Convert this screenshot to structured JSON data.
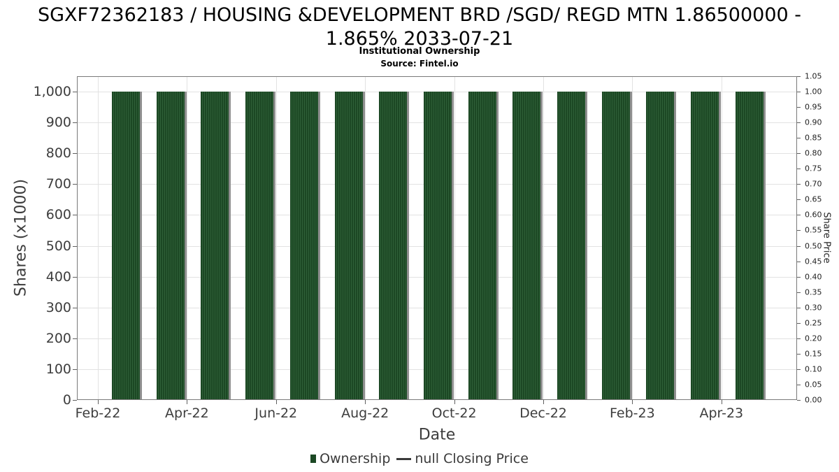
{
  "chart_data": {
    "type": "bar",
    "title_line1": "SGXF72362183 / HOUSING &DEVELOPMENT BRD /SGD/ REGD MTN 1.86500000 -",
    "title_line2": "1.865% 2033-07-21",
    "subtitle": "Institutional Ownership",
    "source": "Source: Fintel.io",
    "categories": [
      "Feb-22",
      "Mar-22",
      "Apr-22",
      "May-22",
      "Jun-22",
      "Jul-22",
      "Aug-22",
      "Sep-22",
      "Oct-22",
      "Nov-22",
      "Dec-22",
      "Jan-23",
      "Feb-23",
      "Mar-23",
      "Apr-23"
    ],
    "series": [
      {
        "name": "Ownership",
        "type": "bar",
        "values": [
          1000,
          1000,
          1000,
          1000,
          1000,
          1000,
          1000,
          1000,
          1000,
          1000,
          1000,
          1000,
          1000,
          1000,
          1000
        ]
      },
      {
        "name": "null Closing Price",
        "type": "line",
        "values": []
      }
    ],
    "x_axis": {
      "label": "Date",
      "tick_labels": [
        "Feb-22",
        "Apr-22",
        "Jun-22",
        "Aug-22",
        "Oct-22",
        "Dec-22",
        "Feb-23",
        "Apr-23"
      ]
    },
    "left_axis": {
      "label": "Shares (x1000)",
      "range": [
        0,
        1050
      ],
      "ticks": [
        {
          "value": 0,
          "label": "0"
        },
        {
          "value": 100,
          "label": "100"
        },
        {
          "value": 200,
          "label": "200"
        },
        {
          "value": 300,
          "label": "300"
        },
        {
          "value": 400,
          "label": "400"
        },
        {
          "value": 500,
          "label": "500"
        },
        {
          "value": 600,
          "label": "600"
        },
        {
          "value": 700,
          "label": "700"
        },
        {
          "value": 800,
          "label": "800"
        },
        {
          "value": 900,
          "label": "900"
        },
        {
          "value": 1000,
          "label": "1,000"
        }
      ]
    },
    "right_axis": {
      "label": "Share Price",
      "range": [
        0,
        1.05
      ],
      "ticks": [
        {
          "value": 0.0,
          "label": "0.00"
        },
        {
          "value": 0.05,
          "label": "0.05"
        },
        {
          "value": 0.1,
          "label": "0.10"
        },
        {
          "value": 0.15,
          "label": "0.15"
        },
        {
          "value": 0.2,
          "label": "0.20"
        },
        {
          "value": 0.25,
          "label": "0.25"
        },
        {
          "value": 0.3,
          "label": "0.30"
        },
        {
          "value": 0.35,
          "label": "0.35"
        },
        {
          "value": 0.4,
          "label": "0.40"
        },
        {
          "value": 0.45,
          "label": "0.45"
        },
        {
          "value": 0.5,
          "label": "0.50"
        },
        {
          "value": 0.55,
          "label": "0.55"
        },
        {
          "value": 0.6,
          "label": "0.60"
        },
        {
          "value": 0.65,
          "label": "0.65"
        },
        {
          "value": 0.7,
          "label": "0.70"
        },
        {
          "value": 0.75,
          "label": "0.75"
        },
        {
          "value": 0.8,
          "label": "0.80"
        },
        {
          "value": 0.85,
          "label": "0.85"
        },
        {
          "value": 0.9,
          "label": "0.90"
        },
        {
          "value": 0.95,
          "label": "0.95"
        },
        {
          "value": 1.0,
          "label": "1.00"
        },
        {
          "value": 1.05,
          "label": "1.05"
        }
      ]
    },
    "legend": [
      {
        "label": "Ownership",
        "swatch": "bar"
      },
      {
        "label": "null Closing Price",
        "swatch": "line"
      }
    ],
    "grid": true,
    "colors": {
      "bar_fill": "#1c4824",
      "bar_stripe": "#2f6038",
      "bar_shadow": "#8f8f8f",
      "grid": "#e2e2e2",
      "spine": "#7a7a7a",
      "tick": "#606060",
      "text": "#3d3d3d"
    }
  }
}
